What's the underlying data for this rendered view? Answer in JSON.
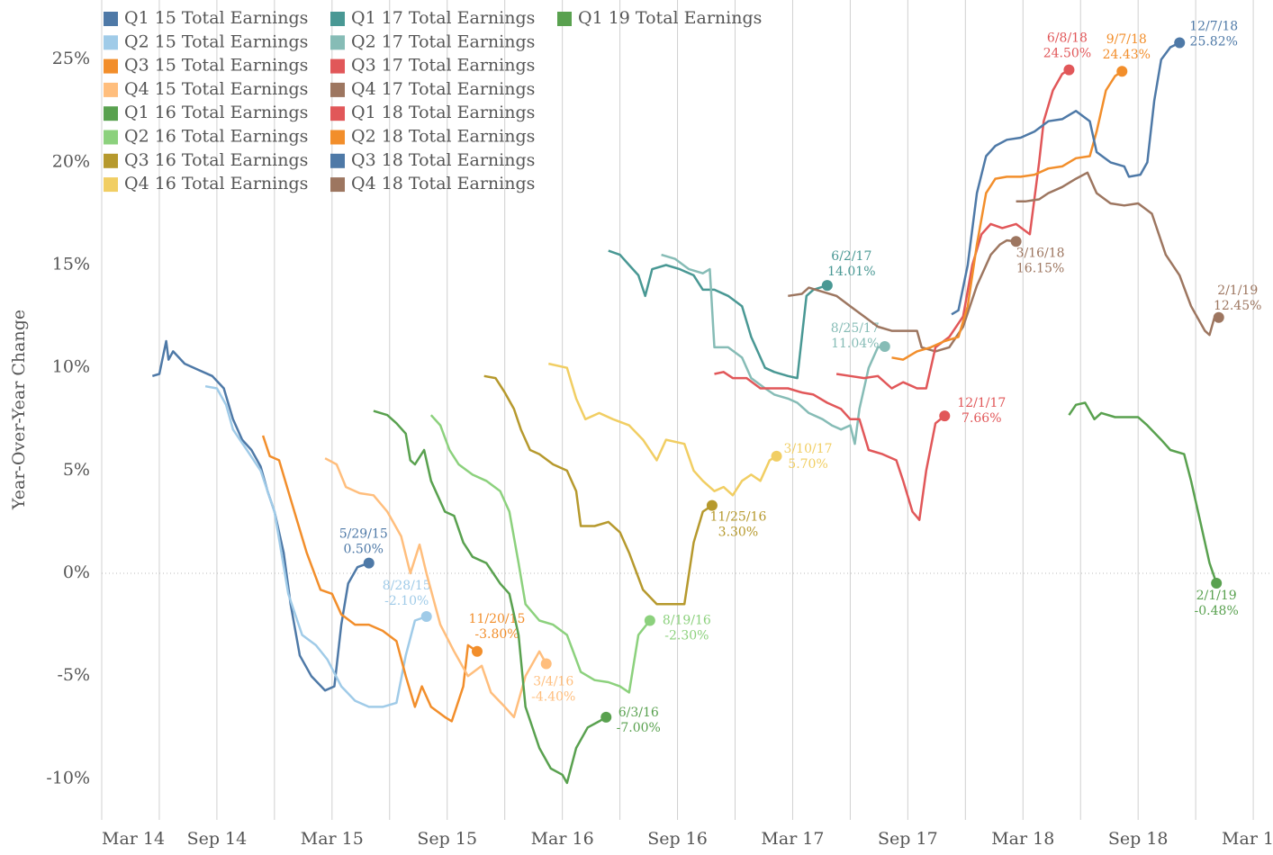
{
  "chart_data": {
    "type": "line",
    "y_label": "Year-Over-Year Change",
    "xlim": [
      2014.17,
      2019.24
    ],
    "ylim": [
      -12,
      27.9
    ],
    "xticks": [
      {
        "value": 2014.17,
        "label": "Mar 14"
      },
      {
        "value": 2014.67,
        "label": "Sep 14"
      },
      {
        "value": 2015.17,
        "label": "Mar 15"
      },
      {
        "value": 2015.67,
        "label": "Sep 15"
      },
      {
        "value": 2016.17,
        "label": "Mar 16"
      },
      {
        "value": 2016.67,
        "label": "Sep 16"
      },
      {
        "value": 2017.17,
        "label": "Mar 17"
      },
      {
        "value": 2017.67,
        "label": "Sep 17"
      },
      {
        "value": 2018.17,
        "label": "Mar 18"
      },
      {
        "value": 2018.67,
        "label": "Sep 18"
      },
      {
        "value": 2019.17,
        "label": "Mar 19"
      }
    ],
    "yticks": [
      {
        "value": -10,
        "label": "-10%"
      },
      {
        "value": -5,
        "label": "-5%"
      },
      {
        "value": 0,
        "label": "0%"
      },
      {
        "value": 5,
        "label": "5%"
      },
      {
        "value": 10,
        "label": "10%"
      },
      {
        "value": 15,
        "label": "15%"
      },
      {
        "value": 20,
        "label": "20%"
      },
      {
        "value": 25,
        "label": "25%"
      }
    ],
    "grid": true,
    "legend": "top-left",
    "series": [
      {
        "name": "Q1 15 Total Earnings",
        "color": "#4e79a7",
        "end_date": "5/29/15",
        "end_value_label": "0.50%",
        "x": [
          2014.39,
          2014.42,
          2014.45,
          2014.46,
          2014.48,
          2014.53,
          2014.59,
          2014.65,
          2014.7,
          2014.74,
          2014.78,
          2014.82,
          2014.86,
          2014.89,
          2014.92,
          2014.96,
          2014.99,
          2015.03,
          2015.08,
          2015.14,
          2015.18,
          2015.21,
          2015.24,
          2015.28,
          2015.33
        ],
        "values": [
          9.6,
          9.7,
          11.3,
          10.4,
          10.8,
          10.2,
          9.9,
          9.6,
          9.0,
          7.5,
          6.5,
          6.0,
          5.2,
          4.0,
          3.0,
          1.0,
          -1.5,
          -4.0,
          -5.0,
          -5.7,
          -5.5,
          -2.5,
          -0.5,
          0.3,
          0.5
        ]
      },
      {
        "name": "Q2 15 Total Earnings",
        "color": "#a0cbe8",
        "end_date": "8/28/15",
        "end_value_label": "-2.10%",
        "x": [
          2014.62,
          2014.67,
          2014.71,
          2014.74,
          2014.8,
          2014.86,
          2014.92,
          2014.98,
          2015.04,
          2015.1,
          2015.15,
          2015.21,
          2015.27,
          2015.33,
          2015.39,
          2015.45,
          2015.49,
          2015.53,
          2015.58
        ],
        "values": [
          9.1,
          9.0,
          8.2,
          7.0,
          6.0,
          5.0,
          3.0,
          -1.0,
          -3.0,
          -3.5,
          -4.2,
          -5.5,
          -6.2,
          -6.5,
          -6.5,
          -6.3,
          -4.0,
          -2.3,
          -2.1
        ]
      },
      {
        "name": "Q3 15 Total Earnings",
        "color": "#f28e2b",
        "end_date": "11/20/15",
        "end_value_label": "-3.80%",
        "x": [
          2014.87,
          2014.9,
          2014.94,
          2014.98,
          2015.02,
          2015.06,
          2015.12,
          2015.17,
          2015.21,
          2015.27,
          2015.33,
          2015.39,
          2015.45,
          2015.49,
          2015.53,
          2015.56,
          2015.6,
          2015.66,
          2015.69,
          2015.74,
          2015.76,
          2015.8
        ],
        "values": [
          6.7,
          5.7,
          5.5,
          4.0,
          2.5,
          1.0,
          -0.8,
          -1.0,
          -2.0,
          -2.5,
          -2.5,
          -2.8,
          -3.3,
          -5.0,
          -6.5,
          -5.5,
          -6.5,
          -7.0,
          -7.2,
          -5.5,
          -3.5,
          -3.8
        ]
      },
      {
        "name": "Q4 15 Total Earnings",
        "color": "#ffbe7d",
        "end_date": "3/4/16",
        "end_value_label": "-4.40%",
        "x": [
          2015.14,
          2015.19,
          2015.23,
          2015.29,
          2015.35,
          2015.41,
          2015.47,
          2015.51,
          2015.55,
          2015.58,
          2015.64,
          2015.7,
          2015.76,
          2015.82,
          2015.86,
          2015.92,
          2015.96,
          2016.01,
          2016.07,
          2016.1
        ],
        "values": [
          5.6,
          5.3,
          4.2,
          3.9,
          3.8,
          3.0,
          1.8,
          0.0,
          1.4,
          0.0,
          -2.5,
          -3.8,
          -5.0,
          -4.5,
          -5.8,
          -6.5,
          -7.0,
          -5.0,
          -3.8,
          -4.4
        ]
      },
      {
        "name": "Q1 16 Total Earnings",
        "color": "#59a14f",
        "end_date": "6/3/16",
        "end_value_label": "-7.00%",
        "x": [
          2015.35,
          2015.41,
          2015.45,
          2015.49,
          2015.51,
          2015.53,
          2015.57,
          2015.6,
          2015.66,
          2015.7,
          2015.74,
          2015.78,
          2015.84,
          2015.9,
          2015.94,
          2015.98,
          2016.01,
          2016.07,
          2016.12,
          2016.17,
          2016.19,
          2016.23,
          2016.28,
          2016.33,
          2016.36
        ],
        "values": [
          7.9,
          7.7,
          7.3,
          6.8,
          5.5,
          5.3,
          6.0,
          4.5,
          3.0,
          2.8,
          1.5,
          0.8,
          0.5,
          -0.5,
          -1.0,
          -3.0,
          -6.5,
          -8.5,
          -9.5,
          -9.8,
          -10.2,
          -8.5,
          -7.5,
          -7.2,
          -7.0
        ]
      },
      {
        "name": "Q2 16 Total Earnings",
        "color": "#8cd17d",
        "end_date": "8/19/16",
        "end_value_label": "-2.30%",
        "x": [
          2015.6,
          2015.64,
          2015.68,
          2015.72,
          2015.78,
          2015.84,
          2015.9,
          2015.94,
          2015.98,
          2016.01,
          2016.07,
          2016.13,
          2016.19,
          2016.25,
          2016.31,
          2016.37,
          2016.42,
          2016.46,
          2016.5,
          2016.55
        ],
        "values": [
          7.7,
          7.2,
          6.0,
          5.3,
          4.8,
          4.5,
          4.0,
          3.0,
          0.5,
          -1.5,
          -2.3,
          -2.5,
          -3.0,
          -4.8,
          -5.2,
          -5.3,
          -5.5,
          -5.8,
          -3.0,
          -2.3
        ]
      },
      {
        "name": "Q3 16 Total Earnings",
        "color": "#b6992d",
        "end_date": "11/25/16",
        "end_value_label": "3.30%",
        "x": [
          2015.83,
          2015.88,
          2015.92,
          2015.96,
          2015.99,
          2016.03,
          2016.07,
          2016.13,
          2016.19,
          2016.23,
          2016.25,
          2016.31,
          2016.37,
          2016.42,
          2016.46,
          2016.52,
          2016.58,
          2016.64,
          2016.7,
          2016.74,
          2016.78,
          2016.82
        ],
        "values": [
          9.6,
          9.5,
          8.8,
          8.0,
          7.0,
          6.0,
          5.8,
          5.3,
          5.0,
          4.0,
          2.3,
          2.3,
          2.5,
          2.0,
          1.0,
          -0.8,
          -1.5,
          -1.5,
          -1.5,
          1.5,
          3.0,
          3.3
        ]
      },
      {
        "name": "Q4 16 Total Earnings",
        "color": "#f1ce63",
        "end_date": "3/10/17",
        "end_value_label": "5.70%",
        "x": [
          2016.11,
          2016.19,
          2016.23,
          2016.27,
          2016.33,
          2016.39,
          2016.46,
          2016.52,
          2016.58,
          2016.62,
          2016.7,
          2016.74,
          2016.78,
          2016.83,
          2016.87,
          2016.91,
          2016.95,
          2016.99,
          2017.03,
          2017.07,
          2017.1
        ],
        "values": [
          10.2,
          10.0,
          8.5,
          7.5,
          7.8,
          7.5,
          7.2,
          6.5,
          5.5,
          6.5,
          6.3,
          5.0,
          4.5,
          4.0,
          4.2,
          3.8,
          4.5,
          4.8,
          4.5,
          5.5,
          5.7
        ]
      },
      {
        "name": "Q1 17 Total Earnings",
        "color": "#499894",
        "end_date": "6/2/17",
        "end_value_label": "14.01%",
        "x": [
          2016.37,
          2016.42,
          2016.46,
          2016.5,
          2016.53,
          2016.56,
          2016.62,
          2016.68,
          2016.74,
          2016.78,
          2016.83,
          2016.89,
          2016.95,
          2016.99,
          2017.05,
          2017.09,
          2017.15,
          2017.19,
          2017.23,
          2017.26,
          2017.32
        ],
        "values": [
          15.7,
          15.5,
          15.0,
          14.5,
          13.5,
          14.8,
          15.0,
          14.8,
          14.5,
          13.8,
          13.8,
          13.5,
          13.0,
          11.5,
          10.0,
          9.8,
          9.6,
          9.5,
          13.5,
          13.8,
          14.01
        ]
      },
      {
        "name": "Q2 17 Total Earnings",
        "color": "#86bcb6",
        "end_date": "8/25/17",
        "end_value_label": "11.04%",
        "x": [
          2016.6,
          2016.66,
          2016.72,
          2016.78,
          2016.81,
          2016.83,
          2016.89,
          2016.95,
          2016.99,
          2017.05,
          2017.09,
          2017.15,
          2017.19,
          2017.24,
          2017.3,
          2017.34,
          2017.38,
          2017.42,
          2017.44,
          2017.46,
          2017.5,
          2017.54,
          2017.57
        ],
        "values": [
          15.5,
          15.3,
          14.8,
          14.6,
          14.8,
          11.0,
          11.0,
          10.5,
          9.5,
          9.0,
          8.7,
          8.5,
          8.3,
          7.8,
          7.5,
          7.2,
          7.0,
          7.2,
          6.3,
          8.0,
          10.0,
          11.0,
          11.04
        ]
      },
      {
        "name": "Q3 17 Total Earnings",
        "color": "#e15759",
        "end_date": "12/1/17",
        "end_value_label": "7.66%",
        "x": [
          2016.83,
          2016.87,
          2016.91,
          2016.97,
          2017.03,
          2017.09,
          2017.15,
          2017.21,
          2017.26,
          2017.32,
          2017.38,
          2017.42,
          2017.46,
          2017.5,
          2017.56,
          2017.62,
          2017.65,
          2017.69,
          2017.72,
          2017.75,
          2017.79,
          2017.83
        ],
        "values": [
          9.7,
          9.8,
          9.5,
          9.5,
          9.0,
          9.0,
          9.0,
          8.8,
          8.7,
          8.3,
          8.0,
          7.5,
          7.5,
          6.0,
          5.8,
          5.5,
          4.5,
          3.0,
          2.6,
          5.0,
          7.3,
          7.66
        ]
      },
      {
        "name": "Q4 17 Total Earnings",
        "color": "#9d7660",
        "end_date": "3/16/18",
        "end_value_label": "16.15%",
        "x": [
          2017.15,
          2017.21,
          2017.24,
          2017.3,
          2017.36,
          2017.42,
          2017.48,
          2017.54,
          2017.6,
          2017.65,
          2017.71,
          2017.73,
          2017.79,
          2017.85,
          2017.91,
          2017.97,
          2018.03,
          2018.07,
          2018.1,
          2018.14
        ],
        "values": [
          13.5,
          13.6,
          13.9,
          13.7,
          13.5,
          13.0,
          12.5,
          12.0,
          11.8,
          11.8,
          11.8,
          11.0,
          10.8,
          11.0,
          12.0,
          14.0,
          15.5,
          16.0,
          16.2,
          16.15
        ]
      },
      {
        "name": "Q1 18 Total Earnings",
        "color": "#e15759",
        "end_date": "6/8/18",
        "end_value_label": "24.50%",
        "x": [
          2017.36,
          2017.42,
          2017.48,
          2017.54,
          2017.6,
          2017.65,
          2017.71,
          2017.75,
          2017.79,
          2017.85,
          2017.91,
          2017.95,
          2017.99,
          2018.03,
          2018.08,
          2018.14,
          2018.2,
          2018.24,
          2018.26,
          2018.3,
          2018.34,
          2018.37
        ],
        "values": [
          9.7,
          9.6,
          9.5,
          9.6,
          9.0,
          9.3,
          9.0,
          9.0,
          11.0,
          11.5,
          12.5,
          15.0,
          16.5,
          17.0,
          16.8,
          17.0,
          16.5,
          20.0,
          22.0,
          23.5,
          24.3,
          24.5
        ]
      },
      {
        "name": "Q2 18 Total Earnings",
        "color": "#f28e2b",
        "end_date": "9/7/18",
        "end_value_label": "24.43%",
        "x": [
          2017.6,
          2017.65,
          2017.71,
          2017.77,
          2017.83,
          2017.89,
          2017.93,
          2017.97,
          2018.01,
          2018.05,
          2018.1,
          2018.16,
          2018.22,
          2018.28,
          2018.34,
          2018.4,
          2018.46,
          2018.49,
          2018.53,
          2018.57,
          2018.6
        ],
        "values": [
          10.5,
          10.4,
          10.8,
          11.0,
          11.3,
          11.5,
          13.0,
          16.0,
          18.5,
          19.2,
          19.3,
          19.3,
          19.4,
          19.7,
          19.8,
          20.2,
          20.3,
          21.5,
          23.5,
          24.2,
          24.43
        ]
      },
      {
        "name": "Q3 18 Total Earnings",
        "color": "#4e79a7",
        "end_date": "12/7/18",
        "end_value_label": "25.82%",
        "x": [
          2017.86,
          2017.89,
          2017.93,
          2017.97,
          2018.01,
          2018.05,
          2018.1,
          2018.16,
          2018.22,
          2018.28,
          2018.34,
          2018.4,
          2018.46,
          2018.49,
          2018.55,
          2018.61,
          2018.63,
          2018.68,
          2018.71,
          2018.74,
          2018.77,
          2018.81,
          2018.85
        ],
        "values": [
          12.6,
          12.8,
          15.0,
          18.5,
          20.3,
          20.8,
          21.1,
          21.2,
          21.5,
          22.0,
          22.1,
          22.5,
          22.0,
          20.5,
          20.0,
          19.8,
          19.3,
          19.4,
          20.0,
          23.0,
          25.0,
          25.6,
          25.82
        ]
      },
      {
        "name": "Q4 18 Total Earnings",
        "color": "#9d7660",
        "end_date": "2/1/19",
        "end_value_label": "12.45%",
        "x": [
          2018.14,
          2018.18,
          2018.24,
          2018.28,
          2018.34,
          2018.4,
          2018.45,
          2018.49,
          2018.55,
          2018.61,
          2018.67,
          2018.73,
          2018.79,
          2018.85,
          2018.9,
          2018.96,
          2018.98,
          2019.0,
          2019.02
        ],
        "values": [
          18.1,
          18.1,
          18.2,
          18.5,
          18.8,
          19.2,
          19.5,
          18.5,
          18.0,
          17.9,
          18.0,
          17.5,
          15.5,
          14.5,
          13.0,
          11.8,
          11.6,
          12.4,
          12.45
        ]
      },
      {
        "name": "Q1 19 Total Earnings",
        "color": "#59a14f",
        "end_date": "2/1/19",
        "end_value_label": "-0.48%",
        "x": [
          2018.37,
          2018.4,
          2018.44,
          2018.48,
          2018.51,
          2018.57,
          2018.63,
          2018.67,
          2018.71,
          2018.77,
          2018.81,
          2018.87,
          2018.9,
          2018.94,
          2018.98,
          2019.01
        ],
        "values": [
          7.7,
          8.2,
          8.3,
          7.5,
          7.8,
          7.6,
          7.6,
          7.6,
          7.2,
          6.5,
          6.0,
          5.8,
          4.5,
          2.5,
          0.5,
          -0.48
        ]
      }
    ]
  }
}
